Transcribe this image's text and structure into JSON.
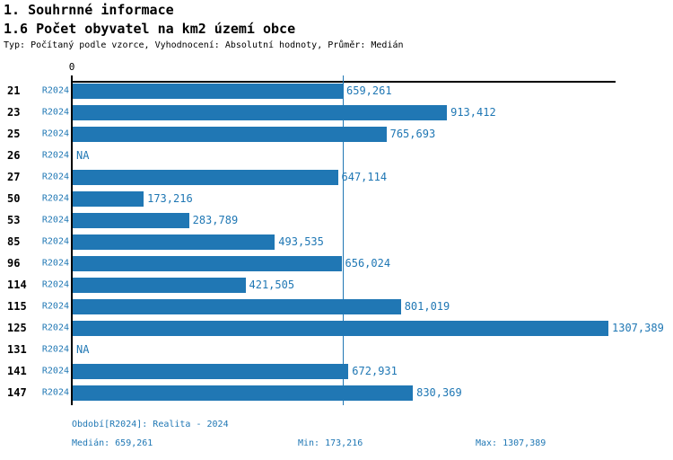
{
  "header": {
    "title": "1. Souhrnné informace",
    "subtitle": "1.6 Počet obyvatel na km2 území obce",
    "meta": "Typ: Počítaný podle vzorce, Vyhodnocení: Absolutní hodnoty, Průměr: Medián"
  },
  "chart_data": {
    "type": "bar",
    "orientation": "horizontal",
    "title": "1.6 Počet obyvatel na km2 území obce",
    "series_name": "R2024",
    "x_axis_zero_label": "0",
    "xlim": [
      0,
      1325
    ],
    "grid": false,
    "categories": [
      "21",
      "23",
      "25",
      "26",
      "27",
      "50",
      "53",
      "85",
      "96",
      "114",
      "115",
      "125",
      "131",
      "141",
      "147"
    ],
    "rows": [
      {
        "id": "21",
        "period": "R2024",
        "value": 659.261,
        "label": "659,261"
      },
      {
        "id": "23",
        "period": "R2024",
        "value": 913.412,
        "label": "913,412"
      },
      {
        "id": "25",
        "period": "R2024",
        "value": 765.693,
        "label": "765,693"
      },
      {
        "id": "26",
        "period": "R2024",
        "value": null,
        "label": "NA"
      },
      {
        "id": "27",
        "period": "R2024",
        "value": 647.114,
        "label": "647,114"
      },
      {
        "id": "50",
        "period": "R2024",
        "value": 173.216,
        "label": "173,216"
      },
      {
        "id": "53",
        "period": "R2024",
        "value": 283.789,
        "label": "283,789"
      },
      {
        "id": "85",
        "period": "R2024",
        "value": 493.535,
        "label": "493,535"
      },
      {
        "id": "96",
        "period": "R2024",
        "value": 656.024,
        "label": "656,024"
      },
      {
        "id": "114",
        "period": "R2024",
        "value": 421.505,
        "label": "421,505"
      },
      {
        "id": "115",
        "period": "R2024",
        "value": 801.019,
        "label": "801,019"
      },
      {
        "id": "125",
        "period": "R2024",
        "value": 1307.389,
        "label": "1307,389"
      },
      {
        "id": "131",
        "period": "R2024",
        "value": null,
        "label": "NA"
      },
      {
        "id": "141",
        "period": "R2024",
        "value": 672.931,
        "label": "672,931"
      },
      {
        "id": "147",
        "period": "R2024",
        "value": 830.369,
        "label": "830,369"
      }
    ],
    "median": 659.261,
    "min": 173.216,
    "max": 1307.389,
    "colors": {
      "bar": "#2077b4",
      "blue_text": "#1f77b4",
      "axis": "#000000",
      "background": "#ffffff"
    }
  },
  "footer": {
    "period": "Období[R2024]: Realita - 2024",
    "median": "Medián: 659,261",
    "min": "Min: 173,216",
    "max": "Max: 1307,389"
  }
}
